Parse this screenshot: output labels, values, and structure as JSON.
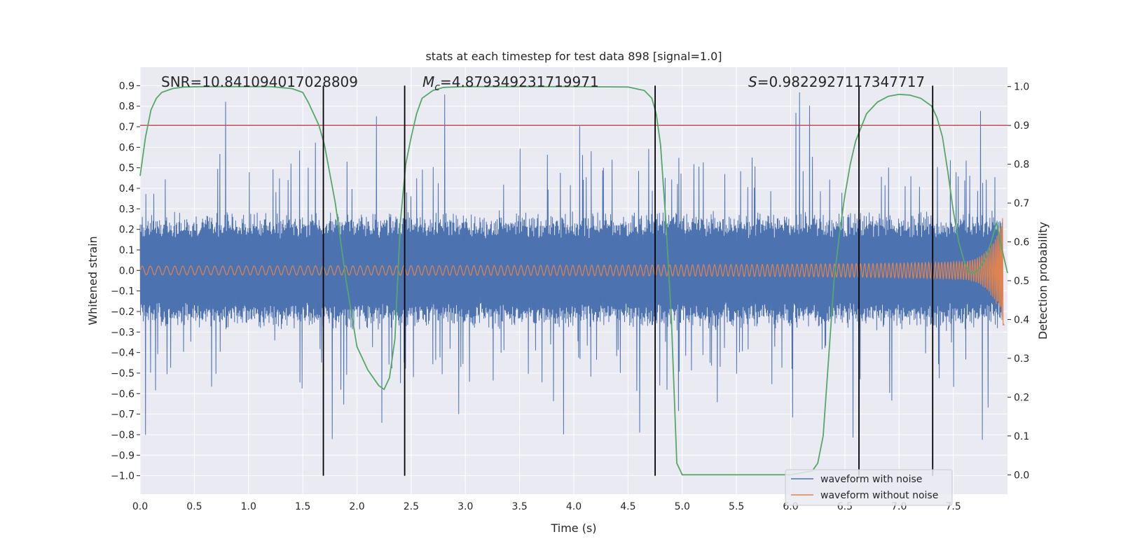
{
  "chart_data": {
    "type": "line",
    "title": "stats at each timestep for test data 898 [signal=1.0]",
    "xlabel": "Time (s)",
    "ylabel": "Whitened strain",
    "y2label": "Detection probability",
    "xlim": [
      0.0,
      8.0
    ],
    "ylim": [
      -1.09,
      0.99
    ],
    "y2lim": [
      -0.05,
      1.05
    ],
    "xticks": [
      "0.0",
      "0.5",
      "1.0",
      "1.5",
      "2.0",
      "2.5",
      "3.0",
      "3.5",
      "4.0",
      "4.5",
      "5.0",
      "5.5",
      "6.0",
      "6.5",
      "7.0",
      "7.5"
    ],
    "xtick_values": [
      0,
      0.5,
      1,
      1.5,
      2,
      2.5,
      3,
      3.5,
      4,
      4.5,
      5,
      5.5,
      6,
      6.5,
      7,
      7.5
    ],
    "yticks": [
      "0.9",
      "0.8",
      "0.7",
      "0.6",
      "0.5",
      "0.4",
      "0.3",
      "0.2",
      "0.1",
      "0.0",
      "−0.1",
      "−0.2",
      "−0.3",
      "−0.4",
      "−0.5",
      "−0.6",
      "−0.7",
      "−0.8",
      "−0.9",
      "−1.0"
    ],
    "ytick_values": [
      0.9,
      0.8,
      0.7,
      0.6,
      0.5,
      0.4,
      0.3,
      0.2,
      0.1,
      0.0,
      -0.1,
      -0.2,
      -0.3,
      -0.4,
      -0.5,
      -0.6,
      -0.7,
      -0.8,
      -0.9,
      -1.0
    ],
    "y2ticks": [
      "1.0",
      "0.9",
      "0.8",
      "0.7",
      "0.6",
      "0.5",
      "0.4",
      "0.3",
      "0.2",
      "0.1",
      "0.0"
    ],
    "y2tick_values": [
      1.0,
      0.9,
      0.8,
      0.7,
      0.6,
      0.5,
      0.4,
      0.3,
      0.2,
      0.1,
      0.0
    ],
    "annotations": {
      "snr": "SNR=10.841094017028809",
      "mc_symbol": "M",
      "mc_sub": "c",
      "mc_value": "=4.879349231719971",
      "s_symbol": "S",
      "s_value": "=0.9822927117347717"
    },
    "threshold": {
      "value": 0.9,
      "axis": "right",
      "color": "#c44e52"
    },
    "vertical_lines": [
      1.69,
      2.44,
      4.75,
      6.63,
      7.31
    ],
    "vertical_line_range": [
      -1.0,
      0.9
    ],
    "series": [
      {
        "name": "waveform with noise",
        "color": "#4c72b0",
        "envelope": "noise, amplitude ~0.25 typical, spikes to ~0.9"
      },
      {
        "name": "waveform without noise",
        "color": "#dd8452",
        "envelope": "chirp, amplitude 0.02 at t=0 rising to 0.3 near t=7.95"
      },
      {
        "name": "detection probability",
        "color": "#55a868",
        "axis": "right",
        "x": [
          0.0,
          0.05,
          0.1,
          0.15,
          0.2,
          0.3,
          0.4,
          0.6,
          0.8,
          1.0,
          1.2,
          1.4,
          1.5,
          1.55,
          1.6,
          1.65,
          1.7,
          1.8,
          1.9,
          2.0,
          2.1,
          2.2,
          2.25,
          2.3,
          2.35,
          2.4,
          2.45,
          2.5,
          2.55,
          2.6,
          2.7,
          2.8,
          3.0,
          3.5,
          4.0,
          4.5,
          4.65,
          4.72,
          4.76,
          4.8,
          4.85,
          4.9,
          4.95,
          5.0,
          5.1,
          5.3,
          5.6,
          6.0,
          6.2,
          6.25,
          6.3,
          6.35,
          6.4,
          6.45,
          6.5,
          6.55,
          6.6,
          6.7,
          6.8,
          6.9,
          7.0,
          7.1,
          7.2,
          7.3,
          7.35,
          7.4,
          7.45,
          7.5,
          7.55,
          7.6,
          7.65,
          7.7,
          7.75,
          7.8,
          7.85,
          7.9,
          7.95,
          8.0
        ],
        "values": [
          0.77,
          0.87,
          0.94,
          0.97,
          0.985,
          0.995,
          0.999,
          1.0,
          1.0,
          1.0,
          1.0,
          0.995,
          0.985,
          0.96,
          0.93,
          0.9,
          0.85,
          0.7,
          0.5,
          0.33,
          0.27,
          0.23,
          0.22,
          0.25,
          0.35,
          0.65,
          0.8,
          0.87,
          0.93,
          0.97,
          0.99,
          0.998,
          1.0,
          1.0,
          1.0,
          0.999,
          0.99,
          0.97,
          0.93,
          0.85,
          0.65,
          0.4,
          0.03,
          0.0,
          0.0,
          0.0,
          0.0,
          0.0,
          0.01,
          0.03,
          0.1,
          0.3,
          0.5,
          0.62,
          0.72,
          0.8,
          0.86,
          0.93,
          0.96,
          0.975,
          0.98,
          0.978,
          0.97,
          0.95,
          0.92,
          0.87,
          0.78,
          0.68,
          0.6,
          0.55,
          0.52,
          0.52,
          0.535,
          0.56,
          0.6,
          0.65,
          0.58,
          0.52
        ]
      }
    ],
    "legend": {
      "placement": "lower-right",
      "entries": [
        "waveform with noise",
        "waveform without noise"
      ]
    }
  }
}
